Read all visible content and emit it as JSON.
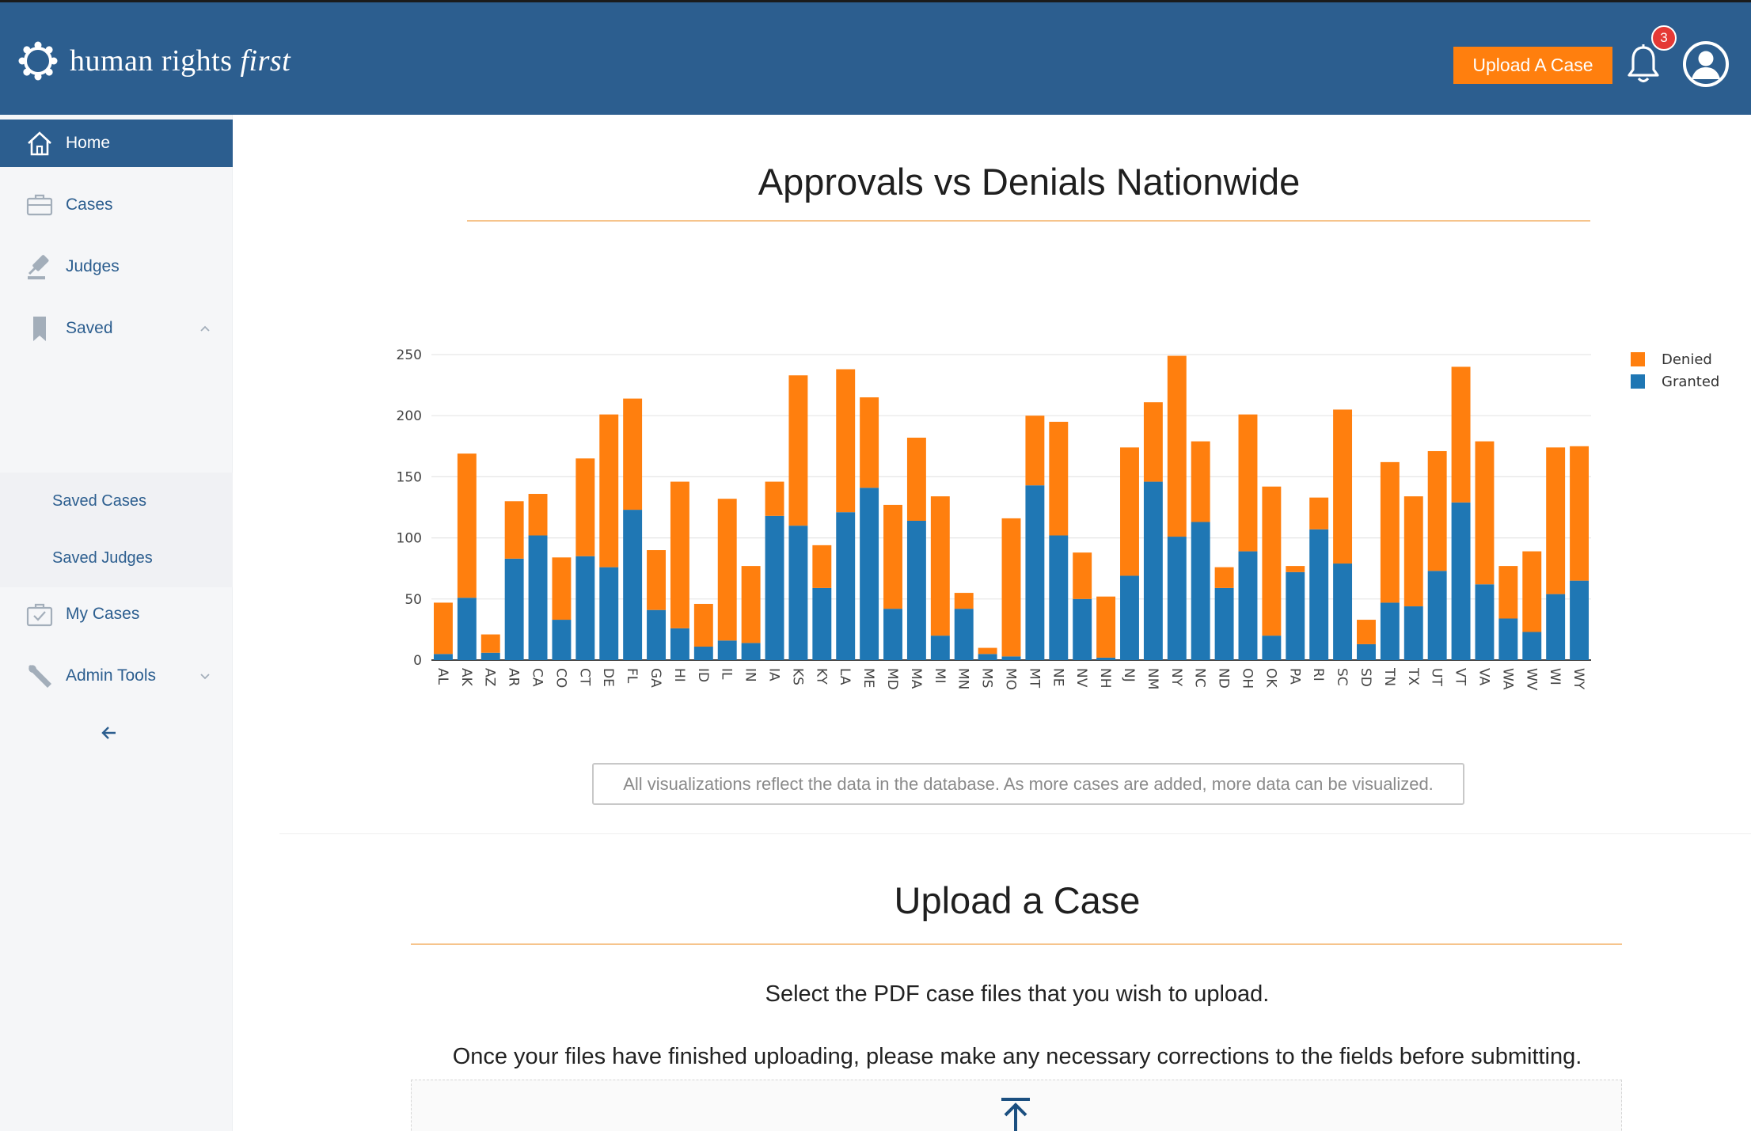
{
  "header": {
    "brand_main": "human rights",
    "brand_italic": "first",
    "upload_button": "Upload A Case",
    "notification_count": "3",
    "colors": {
      "bar": "#2c5e8f",
      "accent": "#ff7f0e",
      "badge": "#e53935"
    }
  },
  "sidebar": {
    "items": [
      {
        "label": "Home",
        "icon": "home-icon",
        "active": true
      },
      {
        "label": "Cases",
        "icon": "briefcase-icon"
      },
      {
        "label": "Judges",
        "icon": "gavel-icon"
      },
      {
        "label": "Saved",
        "icon": "bookmark-icon",
        "expanded": true
      },
      {
        "label": "My Cases",
        "icon": "checked-briefcase-icon"
      },
      {
        "label": "Admin Tools",
        "icon": "wrench-icon",
        "expanded": false
      }
    ],
    "saved_subitems": [
      "Saved Cases",
      "Saved Judges"
    ],
    "collapse_icon": "arrow-left-icon"
  },
  "main": {
    "chart_title": "Approvals vs Denials Nationwide",
    "note": "All visualizations reflect the data in the database. As more cases are added, more data can be visualized.",
    "upload_title": "Upload a Case",
    "upload_instruction_1": "Select the PDF case files that you wish to upload.",
    "upload_instruction_2": "Once your files have finished uploading, please make any necessary corrections to the fields before submitting.",
    "upload_icon": "upload-arrow-icon"
  },
  "chart_data": {
    "type": "bar",
    "stacked": true,
    "categories": [
      "AL",
      "AK",
      "AZ",
      "AR",
      "CA",
      "CO",
      "CT",
      "DE",
      "FL",
      "GA",
      "HI",
      "ID",
      "IL",
      "IN",
      "IA",
      "KS",
      "KY",
      "LA",
      "ME",
      "MD",
      "MA",
      "MI",
      "MN",
      "MS",
      "MO",
      "MT",
      "NE",
      "NV",
      "NH",
      "NJ",
      "NM",
      "NY",
      "NC",
      "ND",
      "OH",
      "OK",
      "PA",
      "RI",
      "SC",
      "SD",
      "TN",
      "TX",
      "UT",
      "VT",
      "VA",
      "WA",
      "WV",
      "WI",
      "WY"
    ],
    "series": [
      {
        "name": "Granted",
        "color": "#1f77b4",
        "values": [
          5,
          51,
          6,
          83,
          102,
          33,
          85,
          76,
          123,
          41,
          26,
          11,
          16,
          14,
          118,
          110,
          59,
          121,
          141,
          42,
          114,
          20,
          42,
          5,
          3,
          143,
          102,
          50,
          2,
          69,
          146,
          101,
          113,
          59,
          89,
          20,
          72,
          107,
          79,
          13,
          47,
          44,
          73,
          129,
          62,
          34,
          23,
          54,
          65
        ]
      },
      {
        "name": "Denied",
        "color": "#ff7f0e",
        "values": [
          42,
          118,
          15,
          47,
          34,
          51,
          80,
          125,
          91,
          49,
          120,
          35,
          116,
          63,
          28,
          123,
          35,
          117,
          74,
          85,
          68,
          114,
          13,
          5,
          113,
          57,
          93,
          38,
          50,
          105,
          65,
          148,
          66,
          17,
          112,
          122,
          5,
          26,
          126,
          20,
          115,
          90,
          98,
          111,
          117,
          43,
          66,
          120,
          110
        ]
      }
    ],
    "xlabel": "",
    "ylabel": "",
    "ylim": [
      0,
      250
    ],
    "yticks": [
      0,
      50,
      100,
      150,
      200,
      250
    ],
    "grid": true,
    "legend_position": "top-right"
  }
}
